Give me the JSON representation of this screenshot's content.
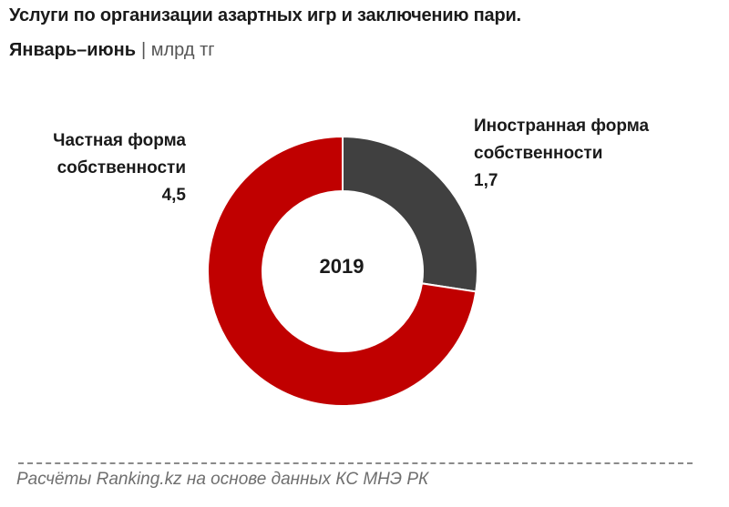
{
  "header": {
    "title": "Услуги по  организации азартных игр и заключению пари.",
    "period": "Январь–июнь",
    "unit": "| млрд тг"
  },
  "colors": {
    "private": "#c00000",
    "foreign": "#404040"
  },
  "chart_data": {
    "type": "pie",
    "variant": "donut",
    "center_label": "2019",
    "slices": [
      {
        "label_line1": "Иностранная форма",
        "label_line2": "собственности",
        "value": 1.7,
        "value_label": "1,7",
        "color": "#404040"
      },
      {
        "label_line1": "Частная форма",
        "label_line2": "собственности",
        "value": 4.5,
        "value_label": "4,5",
        "color": "#c00000"
      }
    ]
  },
  "footer": {
    "source": "Расчёты Ranking.kz на основе данных КС МНЭ РК"
  }
}
